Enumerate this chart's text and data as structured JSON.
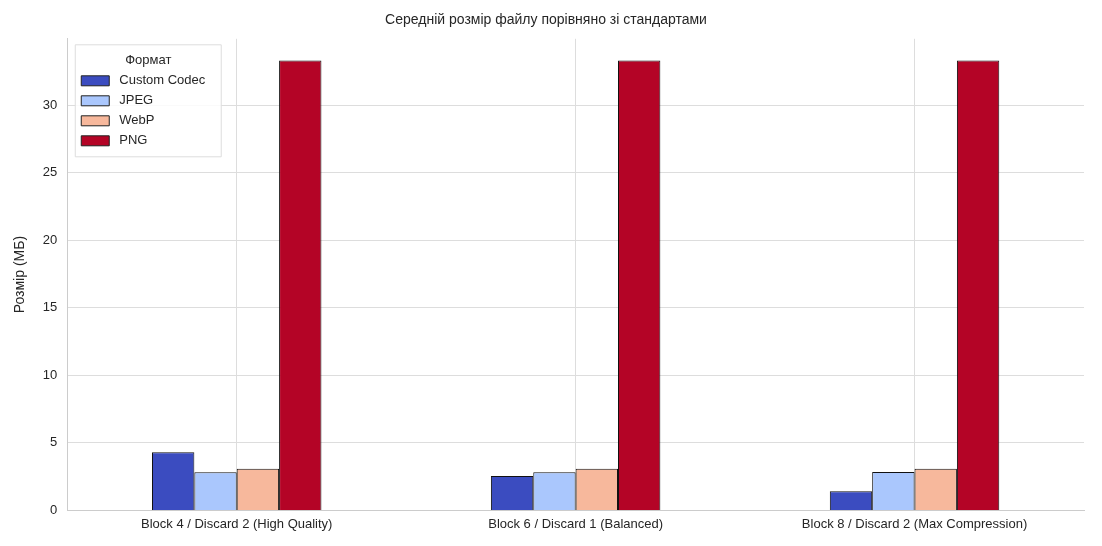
{
  "chart_data": {
    "type": "bar",
    "title": "Середній розмір файлу порівняно зі стандартами",
    "ylabel": "Розмір (МБ)",
    "legend_title": "Формат",
    "categories": [
      "Block 4 / Discard 2 (High Quality)",
      "Block 6 / Discard 1 (Balanced)",
      "Block 8 / Discard 2 (Max Compression)"
    ],
    "series": [
      {
        "name": "Custom Codec",
        "color": "#3b4cc0",
        "values": [
          4.3,
          2.55,
          1.42
        ]
      },
      {
        "name": "JPEG",
        "color": "#aac7fd",
        "values": [
          2.83,
          2.83,
          2.84
        ]
      },
      {
        "name": "WebP",
        "color": "#f7b89c",
        "values": [
          3.08,
          3.08,
          3.08
        ]
      },
      {
        "name": "PNG",
        "color": "#b40426",
        "values": [
          33.3,
          33.3,
          33.3
        ]
      }
    ],
    "ylim": [
      0,
      34.9
    ],
    "yticks": [
      0,
      5,
      10,
      15,
      20,
      25,
      30
    ],
    "grid": true,
    "legend": "top left"
  }
}
